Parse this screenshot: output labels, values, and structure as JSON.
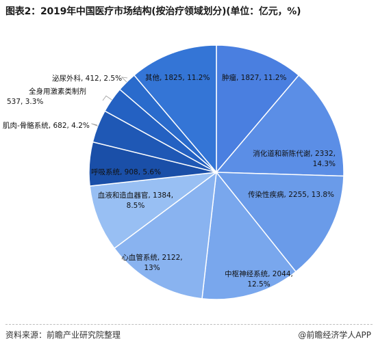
{
  "title": "图表2：2019年中国医疗市场结构(按治疗领域划分)(单位：亿元，%)",
  "source": "资料来源：前瞻产业研究院整理",
  "credit": "@前瞻经济学人APP",
  "chart_data": {
    "type": "pie",
    "title": "图表2：2019年中国医疗市场结构(按治疗领域划分)(单位：亿元，%)",
    "unit": "亿元，%",
    "slices": [
      {
        "name": "肿瘤",
        "value": 1827,
        "percent": 11.2,
        "color": "#4a7fe0"
      },
      {
        "name": "消化道和新陈代谢",
        "value": 2332,
        "percent": 14.3,
        "color": "#5b8ee6"
      },
      {
        "name": "传染性疾病",
        "value": 2255,
        "percent": 13.8,
        "color": "#6a9be9"
      },
      {
        "name": "中枢神经系统",
        "value": 2044,
        "percent": 12.5,
        "color": "#79a7ed"
      },
      {
        "name": "心血管系统",
        "value": 2122,
        "percent": 13.0,
        "color": "#89b3f0"
      },
      {
        "name": "血液和造血器官",
        "value": 1384,
        "percent": 8.5,
        "color": "#98bff3"
      },
      {
        "name": "呼吸系统",
        "value": 908,
        "percent": 5.6,
        "color": "#1a4fa8"
      },
      {
        "name": "肌肉-骨骼系统",
        "value": 682,
        "percent": 4.2,
        "color": "#1f58b5"
      },
      {
        "name": "全身用激素类制剂",
        "value": 537,
        "percent": 3.3,
        "color": "#2461c2"
      },
      {
        "name": "泌尿外科",
        "value": 412,
        "percent": 2.5,
        "color": "#2a6bcc"
      },
      {
        "name": "其他",
        "value": 1825,
        "percent": 11.2,
        "color": "#3475d6"
      }
    ]
  }
}
